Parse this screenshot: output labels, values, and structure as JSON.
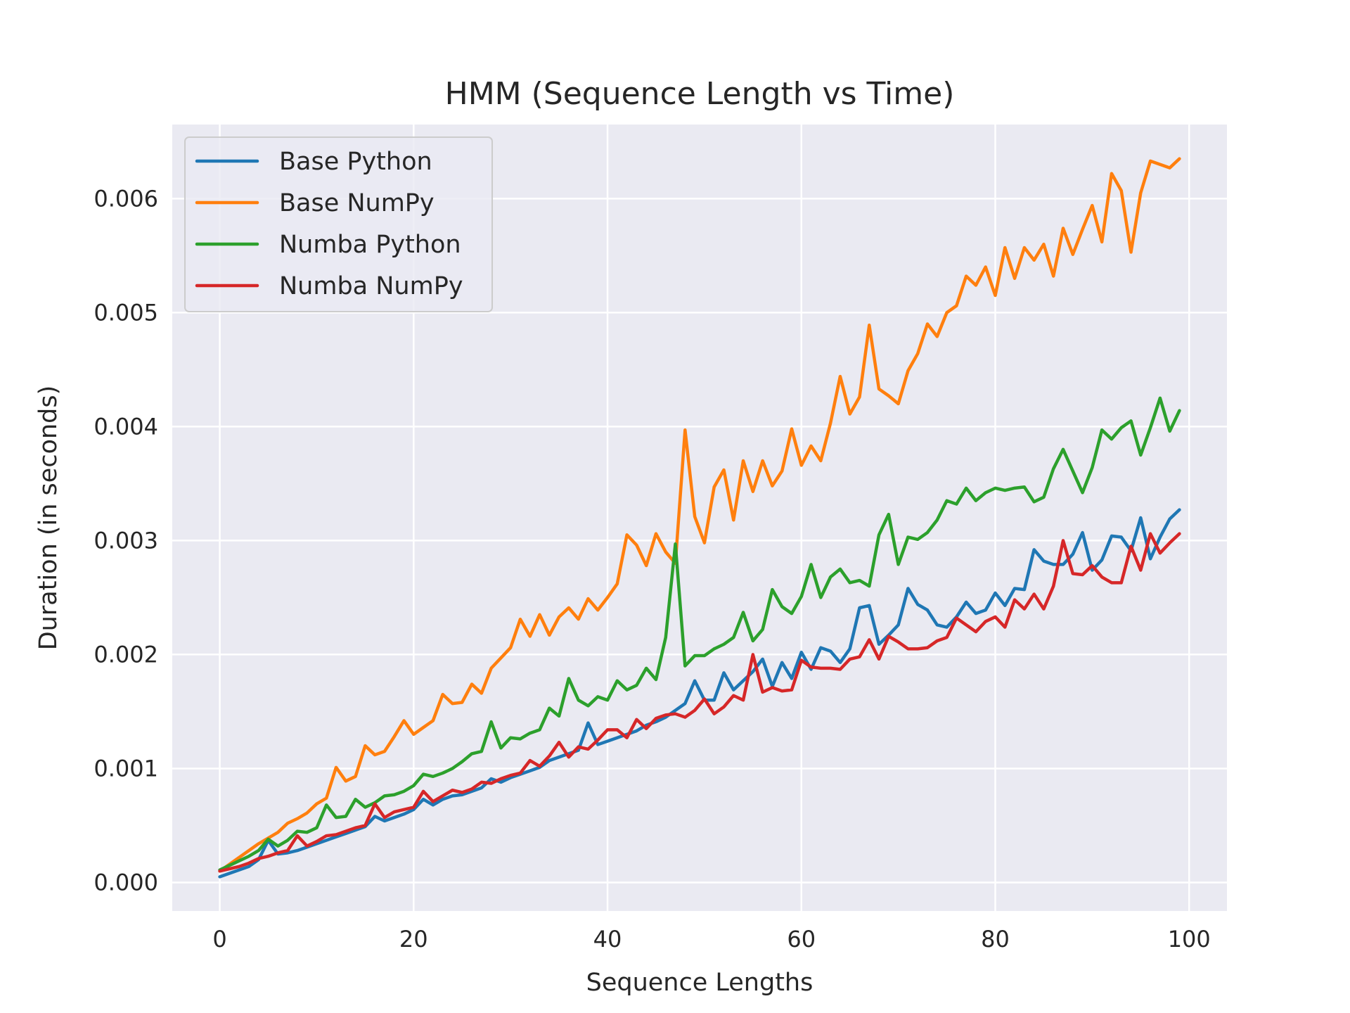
{
  "chart_data": {
    "type": "line",
    "title": "HMM (Sequence Length vs Time)",
    "xlabel": "Sequence Lengths",
    "ylabel": "Duration (in seconds)",
    "xlim": [
      -4.9,
      103.9
    ],
    "ylim": [
      -0.00025,
      0.00665
    ],
    "x_ticks": [
      0,
      20,
      40,
      60,
      80,
      100
    ],
    "y_ticks": [
      0.0,
      0.001,
      0.002,
      0.003,
      0.004,
      0.005,
      0.006
    ],
    "x_tick_labels": [
      "0",
      "20",
      "40",
      "60",
      "80",
      "100"
    ],
    "y_tick_labels": [
      "0.000",
      "0.001",
      "0.002",
      "0.003",
      "0.004",
      "0.005",
      "0.006"
    ],
    "grid": true,
    "legend_position": "top-left",
    "background": "#eaeaf2",
    "series": [
      {
        "name": "Base Python",
        "color": "#1f77b4",
        "values": [
          5e-05,
          8e-05,
          0.00011,
          0.00014,
          0.0002,
          0.00037,
          0.00025,
          0.00026,
          0.00028,
          0.00031,
          0.00034,
          0.00037,
          0.0004,
          0.00043,
          0.00046,
          0.00049,
          0.00058,
          0.00054,
          0.00057,
          0.0006,
          0.00064,
          0.00073,
          0.00068,
          0.00073,
          0.00076,
          0.00077,
          0.0008,
          0.00083,
          0.00091,
          0.00088,
          0.00092,
          0.00095,
          0.00098,
          0.00101,
          0.00107,
          0.0011,
          0.00113,
          0.00116,
          0.0014,
          0.00121,
          0.00124,
          0.00127,
          0.0013,
          0.00133,
          0.00138,
          0.00141,
          0.00145,
          0.00151,
          0.00157,
          0.00177,
          0.0016,
          0.0016,
          0.00184,
          0.00169,
          0.00177,
          0.00185,
          0.00196,
          0.00172,
          0.00193,
          0.00179,
          0.00202,
          0.00187,
          0.00206,
          0.00203,
          0.00193,
          0.00205,
          0.00241,
          0.00243,
          0.00209,
          0.00217,
          0.00226,
          0.00258,
          0.00244,
          0.00239,
          0.00226,
          0.00224,
          0.00233,
          0.00246,
          0.00236,
          0.00239,
          0.00254,
          0.00243,
          0.00258,
          0.00257,
          0.00292,
          0.00282,
          0.00279,
          0.00279,
          0.00288,
          0.00307,
          0.00274,
          0.00283,
          0.00304,
          0.00303,
          0.00291,
          0.0032,
          0.00284,
          0.00303,
          0.00319,
          0.00327
        ]
      },
      {
        "name": "Base NumPy",
        "color": "#ff7f0e",
        "values": [
          0.0001,
          0.00016,
          0.00022,
          0.00028,
          0.00034,
          0.00039,
          0.00044,
          0.00052,
          0.00056,
          0.00061,
          0.00069,
          0.00074,
          0.00101,
          0.00089,
          0.00093,
          0.0012,
          0.00112,
          0.00115,
          0.00128,
          0.00142,
          0.0013,
          0.00136,
          0.00142,
          0.00165,
          0.00157,
          0.00158,
          0.00174,
          0.00166,
          0.00188,
          0.00197,
          0.00206,
          0.00231,
          0.00216,
          0.00235,
          0.00217,
          0.00233,
          0.00241,
          0.00231,
          0.00249,
          0.00239,
          0.0025,
          0.00262,
          0.00305,
          0.00296,
          0.00278,
          0.00306,
          0.0029,
          0.0028,
          0.00397,
          0.00321,
          0.00298,
          0.00347,
          0.00362,
          0.00318,
          0.0037,
          0.00343,
          0.0037,
          0.00348,
          0.00361,
          0.00398,
          0.00366,
          0.00383,
          0.0037,
          0.00403,
          0.00444,
          0.00411,
          0.00426,
          0.00489,
          0.00433,
          0.00427,
          0.0042,
          0.00449,
          0.00464,
          0.0049,
          0.00479,
          0.005,
          0.00506,
          0.00532,
          0.00524,
          0.0054,
          0.00515,
          0.00557,
          0.0053,
          0.00557,
          0.00546,
          0.0056,
          0.00532,
          0.00574,
          0.00551,
          0.00573,
          0.00594,
          0.00562,
          0.00622,
          0.00607,
          0.00553,
          0.00605,
          0.00633,
          0.0063,
          0.00627,
          0.00635
        ]
      },
      {
        "name": "Numba Python",
        "color": "#2ca02c",
        "values": [
          0.00011,
          0.00015,
          0.00019,
          0.00023,
          0.00028,
          0.00038,
          0.00032,
          0.00037,
          0.00045,
          0.00044,
          0.00048,
          0.00068,
          0.00057,
          0.00058,
          0.00073,
          0.00066,
          0.0007,
          0.00076,
          0.00077,
          0.0008,
          0.00085,
          0.00095,
          0.00093,
          0.00096,
          0.001,
          0.00106,
          0.00113,
          0.00115,
          0.00141,
          0.00118,
          0.00127,
          0.00126,
          0.00131,
          0.00134,
          0.00153,
          0.00146,
          0.00179,
          0.0016,
          0.00155,
          0.00163,
          0.0016,
          0.00177,
          0.00169,
          0.00173,
          0.00188,
          0.00178,
          0.00215,
          0.00297,
          0.0019,
          0.00199,
          0.00199,
          0.00205,
          0.00209,
          0.00215,
          0.00237,
          0.00212,
          0.00222,
          0.00257,
          0.00242,
          0.00236,
          0.00251,
          0.00279,
          0.0025,
          0.00268,
          0.00275,
          0.00263,
          0.00265,
          0.0026,
          0.00305,
          0.00323,
          0.00279,
          0.00303,
          0.00301,
          0.00307,
          0.00318,
          0.00335,
          0.00332,
          0.00346,
          0.00335,
          0.00342,
          0.00346,
          0.00344,
          0.00346,
          0.00347,
          0.00334,
          0.00338,
          0.00363,
          0.0038,
          0.00361,
          0.00342,
          0.00364,
          0.00397,
          0.00389,
          0.00399,
          0.00405,
          0.00375,
          0.00399,
          0.00425,
          0.00396,
          0.00414
        ]
      },
      {
        "name": "Numba NumPy",
        "color": "#d62728",
        "values": [
          0.0001,
          0.00012,
          0.00014,
          0.00017,
          0.00021,
          0.00023,
          0.00026,
          0.00028,
          0.00041,
          0.00032,
          0.00036,
          0.00041,
          0.00042,
          0.00045,
          0.00048,
          0.0005,
          0.00069,
          0.00057,
          0.00062,
          0.00064,
          0.00066,
          0.0008,
          0.00071,
          0.00076,
          0.00081,
          0.00079,
          0.00082,
          0.00088,
          0.00087,
          0.00091,
          0.00094,
          0.00096,
          0.00107,
          0.00102,
          0.00111,
          0.00123,
          0.0011,
          0.00119,
          0.00117,
          0.00125,
          0.00134,
          0.00134,
          0.00127,
          0.00143,
          0.00135,
          0.00144,
          0.00147,
          0.00148,
          0.00145,
          0.00151,
          0.00161,
          0.00148,
          0.00154,
          0.00164,
          0.0016,
          0.002,
          0.00167,
          0.00171,
          0.00168,
          0.00169,
          0.00195,
          0.00189,
          0.00188,
          0.00188,
          0.00187,
          0.00196,
          0.00198,
          0.00213,
          0.00196,
          0.00216,
          0.00211,
          0.00205,
          0.00205,
          0.00206,
          0.00212,
          0.00215,
          0.00232,
          0.00226,
          0.0022,
          0.00229,
          0.00233,
          0.00224,
          0.00248,
          0.0024,
          0.00253,
          0.0024,
          0.0026,
          0.003,
          0.00271,
          0.0027,
          0.00278,
          0.00268,
          0.00263,
          0.00263,
          0.00295,
          0.00274,
          0.00306,
          0.00289,
          0.00298,
          0.00306
        ]
      }
    ]
  }
}
